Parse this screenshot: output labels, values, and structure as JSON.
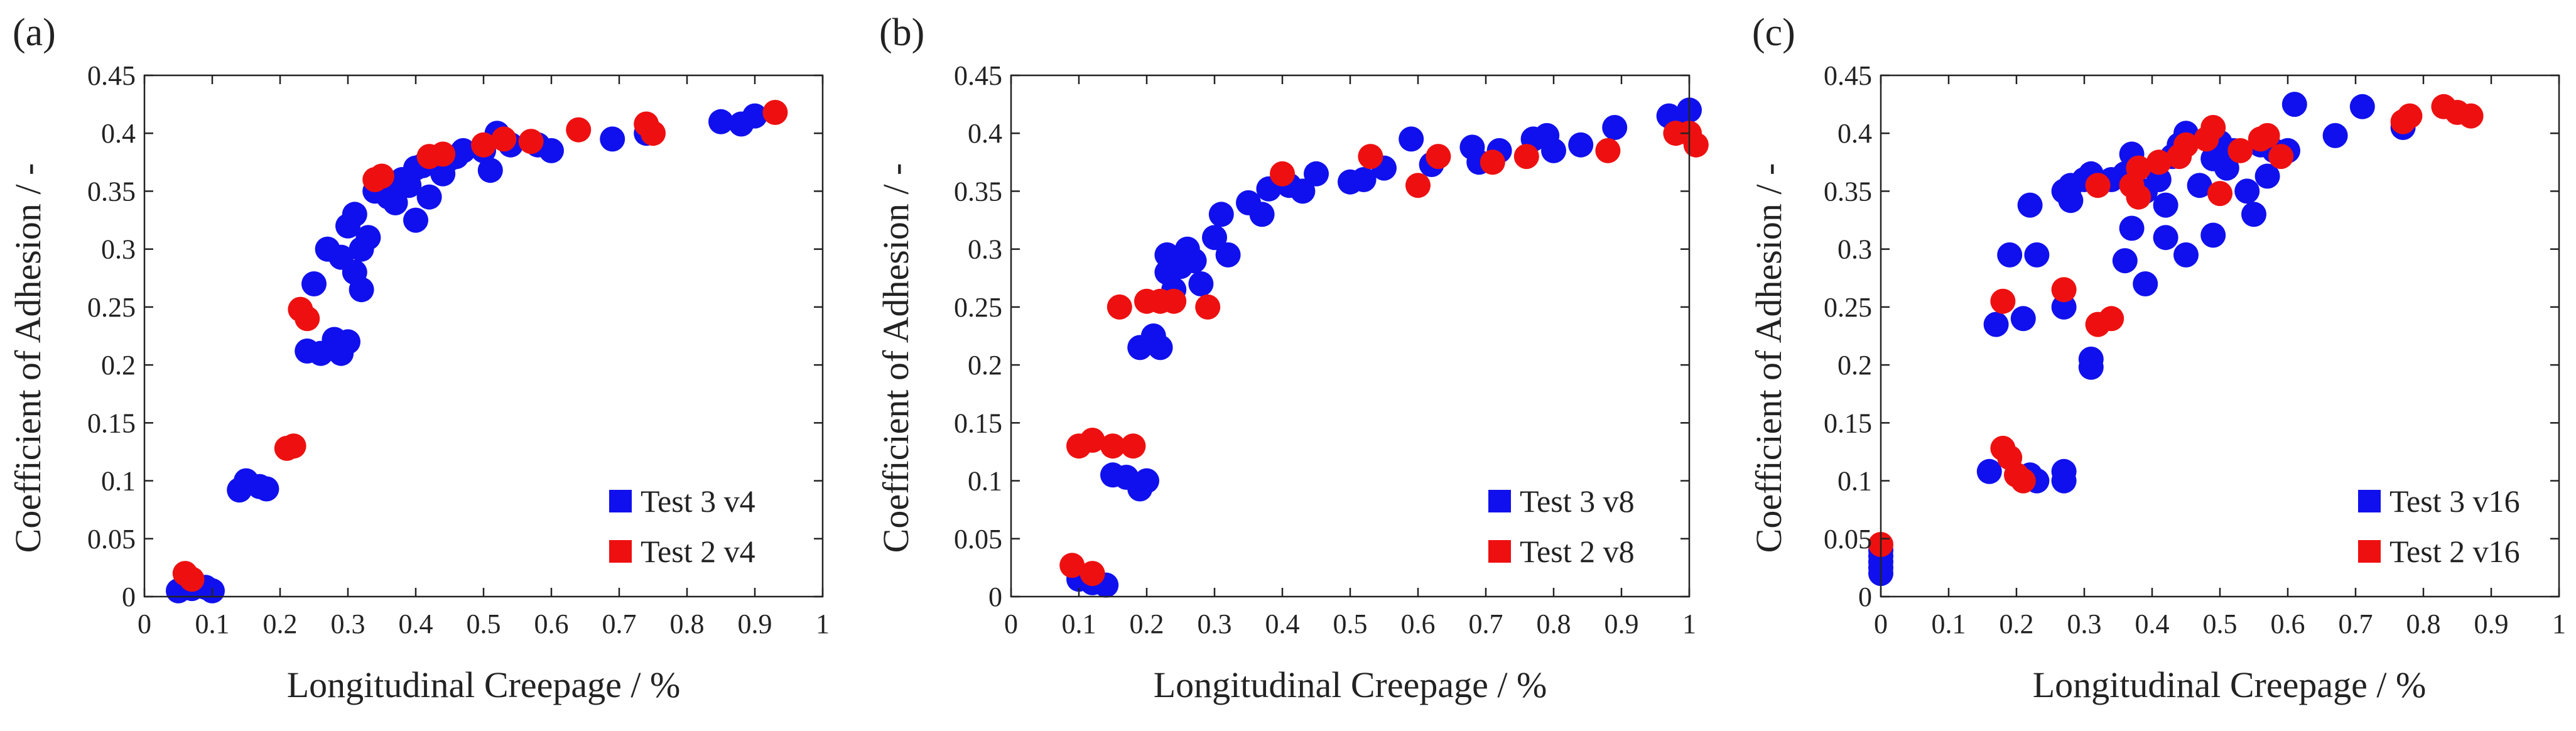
{
  "figure": {
    "colors": {
      "test3": "#1010ee",
      "test2": "#ee1010",
      "axis": "#222222"
    }
  },
  "chart_data": [
    {
      "type": "scatter",
      "panel_label": "(a)",
      "xlabel": "Longitudinal Creepage / %",
      "ylabel": "Coefficient of Adhesion / -",
      "xlim": [
        0,
        1
      ],
      "ylim": [
        0,
        0.45
      ],
      "xticks": [
        0,
        0.1,
        0.2,
        0.3,
        0.4,
        0.5,
        0.6,
        0.7,
        0.8,
        0.9,
        1
      ],
      "xtick_labels": [
        "0",
        "0.1",
        "0.2",
        "0.3",
        "0.4",
        "0.5",
        "0.6",
        "0.7",
        "0.8",
        "0.9",
        "1"
      ],
      "yticks": [
        0,
        0.05,
        0.1,
        0.15,
        0.2,
        0.25,
        0.3,
        0.35,
        0.4,
        0.45
      ],
      "ytick_labels": [
        "0",
        "0.05",
        "0.1",
        "0.15",
        "0.2",
        "0.25",
        "0.3",
        "0.35",
        "0.4",
        "0.45"
      ],
      "legend_position": "bottom-right",
      "series": [
        {
          "name": "Test 3 v4",
          "color": "#1010ee",
          "points": [
            [
              0.05,
              0.005
            ],
            [
              0.07,
              0.007
            ],
            [
              0.09,
              0.008
            ],
            [
              0.1,
              0.005
            ],
            [
              0.14,
              0.092
            ],
            [
              0.15,
              0.1
            ],
            [
              0.17,
              0.095
            ],
            [
              0.18,
              0.093
            ],
            [
              0.24,
              0.212
            ],
            [
              0.25,
              0.27
            ],
            [
              0.26,
              0.21
            ],
            [
              0.27,
              0.3
            ],
            [
              0.28,
              0.222
            ],
            [
              0.29,
              0.21
            ],
            [
              0.29,
              0.293
            ],
            [
              0.3,
              0.22
            ],
            [
              0.3,
              0.32
            ],
            [
              0.31,
              0.33
            ],
            [
              0.31,
              0.28
            ],
            [
              0.32,
              0.265
            ],
            [
              0.32,
              0.3
            ],
            [
              0.33,
              0.31
            ],
            [
              0.34,
              0.35
            ],
            [
              0.36,
              0.345
            ],
            [
              0.37,
              0.34
            ],
            [
              0.38,
              0.36
            ],
            [
              0.39,
              0.355
            ],
            [
              0.4,
              0.325
            ],
            [
              0.4,
              0.37
            ],
            [
              0.41,
              0.372
            ],
            [
              0.42,
              0.345
            ],
            [
              0.43,
              0.378
            ],
            [
              0.44,
              0.365
            ],
            [
              0.45,
              0.378
            ],
            [
              0.46,
              0.38
            ],
            [
              0.47,
              0.385
            ],
            [
              0.5,
              0.385
            ],
            [
              0.51,
              0.368
            ],
            [
              0.52,
              0.4
            ],
            [
              0.54,
              0.39
            ],
            [
              0.58,
              0.39
            ],
            [
              0.6,
              0.385
            ],
            [
              0.69,
              0.395
            ],
            [
              0.74,
              0.4
            ],
            [
              0.85,
              0.41
            ],
            [
              0.88,
              0.408
            ],
            [
              0.9,
              0.415
            ]
          ]
        },
        {
          "name": "Test 2 v4",
          "color": "#ee1010",
          "points": [
            [
              0.06,
              0.02
            ],
            [
              0.07,
              0.015
            ],
            [
              0.21,
              0.128
            ],
            [
              0.22,
              0.13
            ],
            [
              0.23,
              0.248
            ],
            [
              0.24,
              0.24
            ],
            [
              0.34,
              0.36
            ],
            [
              0.35,
              0.363
            ],
            [
              0.42,
              0.38
            ],
            [
              0.44,
              0.382
            ],
            [
              0.5,
              0.39
            ],
            [
              0.53,
              0.395
            ],
            [
              0.57,
              0.393
            ],
            [
              0.64,
              0.403
            ],
            [
              0.74,
              0.408
            ],
            [
              0.75,
              0.4
            ],
            [
              0.93,
              0.418
            ]
          ]
        }
      ]
    },
    {
      "type": "scatter",
      "panel_label": "(b)",
      "xlabel": "Longitudinal Creepage / %",
      "ylabel": "Coefficient of Adhesion / -",
      "xlim": [
        0,
        1
      ],
      "ylim": [
        0,
        0.45
      ],
      "xticks": [
        0,
        0.1,
        0.2,
        0.3,
        0.4,
        0.5,
        0.6,
        0.7,
        0.8,
        0.9,
        1
      ],
      "xtick_labels": [
        "0",
        "0.1",
        "0.2",
        "0.3",
        "0.4",
        "0.5",
        "0.6",
        "0.7",
        "0.8",
        "0.9",
        "1"
      ],
      "yticks": [
        0,
        0.05,
        0.1,
        0.15,
        0.2,
        0.25,
        0.3,
        0.35,
        0.4,
        0.45
      ],
      "ytick_labels": [
        "0",
        "0.05",
        "0.1",
        "0.15",
        "0.2",
        "0.25",
        "0.3",
        "0.35",
        "0.4",
        "0.45"
      ],
      "legend_position": "bottom-right",
      "series": [
        {
          "name": "Test 3 v8",
          "color": "#1010ee",
          "points": [
            [
              0.1,
              0.015
            ],
            [
              0.12,
              0.012
            ],
            [
              0.14,
              0.01
            ],
            [
              0.15,
              0.105
            ],
            [
              0.17,
              0.103
            ],
            [
              0.19,
              0.093
            ],
            [
              0.2,
              0.1
            ],
            [
              0.19,
              0.215
            ],
            [
              0.21,
              0.225
            ],
            [
              0.22,
              0.215
            ],
            [
              0.23,
              0.295
            ],
            [
              0.23,
              0.28
            ],
            [
              0.24,
              0.265
            ],
            [
              0.25,
              0.285
            ],
            [
              0.26,
              0.3
            ],
            [
              0.27,
              0.29
            ],
            [
              0.28,
              0.27
            ],
            [
              0.3,
              0.31
            ],
            [
              0.31,
              0.33
            ],
            [
              0.32,
              0.295
            ],
            [
              0.35,
              0.34
            ],
            [
              0.37,
              0.33
            ],
            [
              0.38,
              0.352
            ],
            [
              0.41,
              0.355
            ],
            [
              0.43,
              0.35
            ],
            [
              0.45,
              0.365
            ],
            [
              0.5,
              0.358
            ],
            [
              0.52,
              0.36
            ],
            [
              0.55,
              0.37
            ],
            [
              0.59,
              0.395
            ],
            [
              0.62,
              0.373
            ],
            [
              0.68,
              0.388
            ],
            [
              0.69,
              0.375
            ],
            [
              0.72,
              0.385
            ],
            [
              0.77,
              0.395
            ],
            [
              0.79,
              0.398
            ],
            [
              0.8,
              0.385
            ],
            [
              0.84,
              0.39
            ],
            [
              0.89,
              0.405
            ],
            [
              0.97,
              0.415
            ],
            [
              1.0,
              0.42
            ],
            [
              0.99,
              0.405
            ]
          ]
        },
        {
          "name": "Test 2 v8",
          "color": "#ee1010",
          "points": [
            [
              0.09,
              0.027
            ],
            [
              0.1,
              0.13
            ],
            [
              0.12,
              0.135
            ],
            [
              0.12,
              0.02
            ],
            [
              0.15,
              0.13
            ],
            [
              0.16,
              0.25
            ],
            [
              0.18,
              0.13
            ],
            [
              0.2,
              0.255
            ],
            [
              0.22,
              0.255
            ],
            [
              0.24,
              0.255
            ],
            [
              0.29,
              0.25
            ],
            [
              0.4,
              0.365
            ],
            [
              0.53,
              0.38
            ],
            [
              0.6,
              0.355
            ],
            [
              0.63,
              0.38
            ],
            [
              0.71,
              0.375
            ],
            [
              0.76,
              0.38
            ],
            [
              0.88,
              0.385
            ],
            [
              0.98,
              0.4
            ],
            [
              1.0,
              0.4
            ],
            [
              1.01,
              0.39
            ]
          ]
        }
      ]
    },
    {
      "type": "scatter",
      "panel_label": "(c)",
      "xlabel": "Longitudinal Creepage / %",
      "ylabel": "Coefficient of Adhesion / -",
      "xlim": [
        0,
        1
      ],
      "ylim": [
        0,
        0.45
      ],
      "xticks": [
        0,
        0.1,
        0.2,
        0.3,
        0.4,
        0.5,
        0.6,
        0.7,
        0.8,
        0.9,
        1
      ],
      "xtick_labels": [
        "0",
        "0.1",
        "0.2",
        "0.3",
        "0.4",
        "0.5",
        "0.6",
        "0.7",
        "0.8",
        "0.9",
        "1"
      ],
      "yticks": [
        0,
        0.05,
        0.1,
        0.15,
        0.2,
        0.25,
        0.3,
        0.35,
        0.4,
        0.45
      ],
      "ytick_labels": [
        "0",
        "0.05",
        "0.1",
        "0.15",
        "0.2",
        "0.25",
        "0.3",
        "0.35",
        "0.4",
        "0.45"
      ],
      "legend_position": "bottom-right",
      "series": [
        {
          "name": "Test 3 v16",
          "color": "#1010ee",
          "points": [
            [
              0.0,
              0.02
            ],
            [
              0.0,
              0.025
            ],
            [
              0.0,
              0.03
            ],
            [
              0.0,
              0.035
            ],
            [
              0.0,
              0.04
            ],
            [
              0.16,
              0.108
            ],
            [
              0.17,
              0.235
            ],
            [
              0.19,
              0.295
            ],
            [
              0.21,
              0.24
            ],
            [
              0.22,
              0.105
            ],
            [
              0.22,
              0.338
            ],
            [
              0.23,
              0.295
            ],
            [
              0.23,
              0.1
            ],
            [
              0.27,
              0.1
            ],
            [
              0.27,
              0.108
            ],
            [
              0.27,
              0.25
            ],
            [
              0.27,
              0.35
            ],
            [
              0.28,
              0.355
            ],
            [
              0.28,
              0.342
            ],
            [
              0.3,
              0.36
            ],
            [
              0.31,
              0.365
            ],
            [
              0.31,
              0.205
            ],
            [
              0.31,
              0.198
            ],
            [
              0.34,
              0.36
            ],
            [
              0.36,
              0.29
            ],
            [
              0.36,
              0.365
            ],
            [
              0.37,
              0.382
            ],
            [
              0.37,
              0.318
            ],
            [
              0.39,
              0.27
            ],
            [
              0.39,
              0.35
            ],
            [
              0.41,
              0.36
            ],
            [
              0.42,
              0.31
            ],
            [
              0.42,
              0.338
            ],
            [
              0.43,
              0.38
            ],
            [
              0.44,
              0.39
            ],
            [
              0.45,
              0.4
            ],
            [
              0.45,
              0.295
            ],
            [
              0.47,
              0.355
            ],
            [
              0.49,
              0.312
            ],
            [
              0.49,
              0.378
            ],
            [
              0.5,
              0.392
            ],
            [
              0.51,
              0.37
            ],
            [
              0.52,
              0.385
            ],
            [
              0.54,
              0.35
            ],
            [
              0.55,
              0.33
            ],
            [
              0.56,
              0.39
            ],
            [
              0.57,
              0.363
            ],
            [
              0.58,
              0.385
            ],
            [
              0.6,
              0.385
            ],
            [
              0.61,
              0.425
            ],
            [
              0.67,
              0.398
            ],
            [
              0.71,
              0.423
            ],
            [
              0.77,
              0.405
            ]
          ]
        },
        {
          "name": "Test 2 v16",
          "color": "#ee1010",
          "points": [
            [
              0.0,
              0.045
            ],
            [
              0.18,
              0.128
            ],
            [
              0.18,
              0.255
            ],
            [
              0.19,
              0.12
            ],
            [
              0.2,
              0.105
            ],
            [
              0.21,
              0.1
            ],
            [
              0.27,
              0.265
            ],
            [
              0.32,
              0.235
            ],
            [
              0.32,
              0.355
            ],
            [
              0.34,
              0.24
            ],
            [
              0.37,
              0.355
            ],
            [
              0.38,
              0.37
            ],
            [
              0.38,
              0.345
            ],
            [
              0.41,
              0.375
            ],
            [
              0.44,
              0.38
            ],
            [
              0.45,
              0.39
            ],
            [
              0.48,
              0.395
            ],
            [
              0.49,
              0.405
            ],
            [
              0.5,
              0.348
            ],
            [
              0.53,
              0.385
            ],
            [
              0.56,
              0.395
            ],
            [
              0.57,
              0.398
            ],
            [
              0.59,
              0.38
            ],
            [
              0.77,
              0.41
            ],
            [
              0.78,
              0.415
            ],
            [
              0.83,
              0.423
            ],
            [
              0.85,
              0.418
            ],
            [
              0.87,
              0.415
            ]
          ]
        }
      ]
    }
  ]
}
